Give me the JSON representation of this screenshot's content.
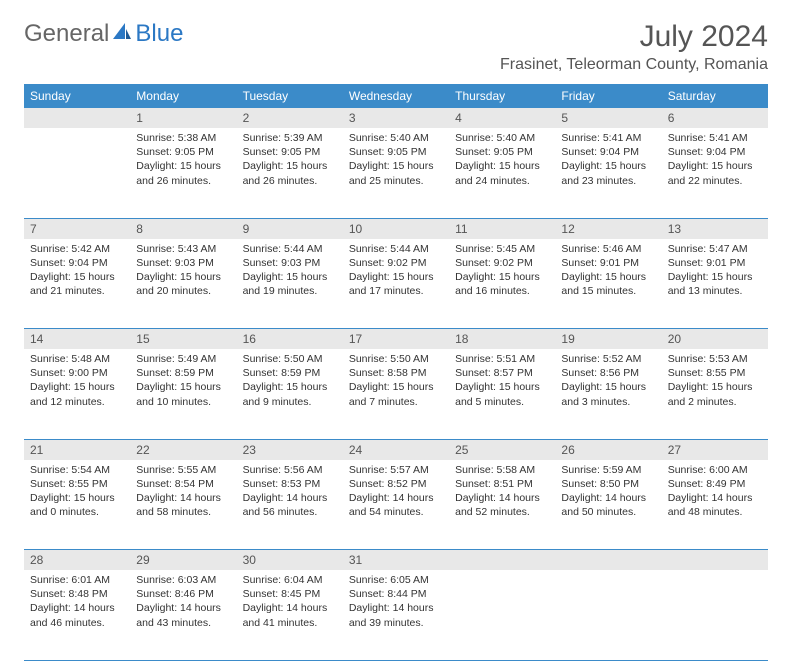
{
  "logo": {
    "part1": "General",
    "part2": "Blue"
  },
  "title": "July 2024",
  "location": "Frasinet, Teleorman County, Romania",
  "header_bg": "#3b8bc9",
  "days_of_week": [
    "Sunday",
    "Monday",
    "Tuesday",
    "Wednesday",
    "Thursday",
    "Friday",
    "Saturday"
  ],
  "weeks": [
    {
      "nums": [
        "",
        "1",
        "2",
        "3",
        "4",
        "5",
        "6"
      ],
      "cells": [
        null,
        {
          "sunrise": "5:38 AM",
          "sunset": "9:05 PM",
          "daylight": "15 hours and 26 minutes."
        },
        {
          "sunrise": "5:39 AM",
          "sunset": "9:05 PM",
          "daylight": "15 hours and 26 minutes."
        },
        {
          "sunrise": "5:40 AM",
          "sunset": "9:05 PM",
          "daylight": "15 hours and 25 minutes."
        },
        {
          "sunrise": "5:40 AM",
          "sunset": "9:05 PM",
          "daylight": "15 hours and 24 minutes."
        },
        {
          "sunrise": "5:41 AM",
          "sunset": "9:04 PM",
          "daylight": "15 hours and 23 minutes."
        },
        {
          "sunrise": "5:41 AM",
          "sunset": "9:04 PM",
          "daylight": "15 hours and 22 minutes."
        }
      ]
    },
    {
      "nums": [
        "7",
        "8",
        "9",
        "10",
        "11",
        "12",
        "13"
      ],
      "cells": [
        {
          "sunrise": "5:42 AM",
          "sunset": "9:04 PM",
          "daylight": "15 hours and 21 minutes."
        },
        {
          "sunrise": "5:43 AM",
          "sunset": "9:03 PM",
          "daylight": "15 hours and 20 minutes."
        },
        {
          "sunrise": "5:44 AM",
          "sunset": "9:03 PM",
          "daylight": "15 hours and 19 minutes."
        },
        {
          "sunrise": "5:44 AM",
          "sunset": "9:02 PM",
          "daylight": "15 hours and 17 minutes."
        },
        {
          "sunrise": "5:45 AM",
          "sunset": "9:02 PM",
          "daylight": "15 hours and 16 minutes."
        },
        {
          "sunrise": "5:46 AM",
          "sunset": "9:01 PM",
          "daylight": "15 hours and 15 minutes."
        },
        {
          "sunrise": "5:47 AM",
          "sunset": "9:01 PM",
          "daylight": "15 hours and 13 minutes."
        }
      ]
    },
    {
      "nums": [
        "14",
        "15",
        "16",
        "17",
        "18",
        "19",
        "20"
      ],
      "cells": [
        {
          "sunrise": "5:48 AM",
          "sunset": "9:00 PM",
          "daylight": "15 hours and 12 minutes."
        },
        {
          "sunrise": "5:49 AM",
          "sunset": "8:59 PM",
          "daylight": "15 hours and 10 minutes."
        },
        {
          "sunrise": "5:50 AM",
          "sunset": "8:59 PM",
          "daylight": "15 hours and 9 minutes."
        },
        {
          "sunrise": "5:50 AM",
          "sunset": "8:58 PM",
          "daylight": "15 hours and 7 minutes."
        },
        {
          "sunrise": "5:51 AM",
          "sunset": "8:57 PM",
          "daylight": "15 hours and 5 minutes."
        },
        {
          "sunrise": "5:52 AM",
          "sunset": "8:56 PM",
          "daylight": "15 hours and 3 minutes."
        },
        {
          "sunrise": "5:53 AM",
          "sunset": "8:55 PM",
          "daylight": "15 hours and 2 minutes."
        }
      ]
    },
    {
      "nums": [
        "21",
        "22",
        "23",
        "24",
        "25",
        "26",
        "27"
      ],
      "cells": [
        {
          "sunrise": "5:54 AM",
          "sunset": "8:55 PM",
          "daylight": "15 hours and 0 minutes."
        },
        {
          "sunrise": "5:55 AM",
          "sunset": "8:54 PM",
          "daylight": "14 hours and 58 minutes."
        },
        {
          "sunrise": "5:56 AM",
          "sunset": "8:53 PM",
          "daylight": "14 hours and 56 minutes."
        },
        {
          "sunrise": "5:57 AM",
          "sunset": "8:52 PM",
          "daylight": "14 hours and 54 minutes."
        },
        {
          "sunrise": "5:58 AM",
          "sunset": "8:51 PM",
          "daylight": "14 hours and 52 minutes."
        },
        {
          "sunrise": "5:59 AM",
          "sunset": "8:50 PM",
          "daylight": "14 hours and 50 minutes."
        },
        {
          "sunrise": "6:00 AM",
          "sunset": "8:49 PM",
          "daylight": "14 hours and 48 minutes."
        }
      ]
    },
    {
      "nums": [
        "28",
        "29",
        "30",
        "31",
        "",
        "",
        ""
      ],
      "cells": [
        {
          "sunrise": "6:01 AM",
          "sunset": "8:48 PM",
          "daylight": "14 hours and 46 minutes."
        },
        {
          "sunrise": "6:03 AM",
          "sunset": "8:46 PM",
          "daylight": "14 hours and 43 minutes."
        },
        {
          "sunrise": "6:04 AM",
          "sunset": "8:45 PM",
          "daylight": "14 hours and 41 minutes."
        },
        {
          "sunrise": "6:05 AM",
          "sunset": "8:44 PM",
          "daylight": "14 hours and 39 minutes."
        },
        null,
        null,
        null
      ]
    }
  ],
  "labels": {
    "sunrise": "Sunrise:",
    "sunset": "Sunset:",
    "daylight": "Daylight:"
  }
}
